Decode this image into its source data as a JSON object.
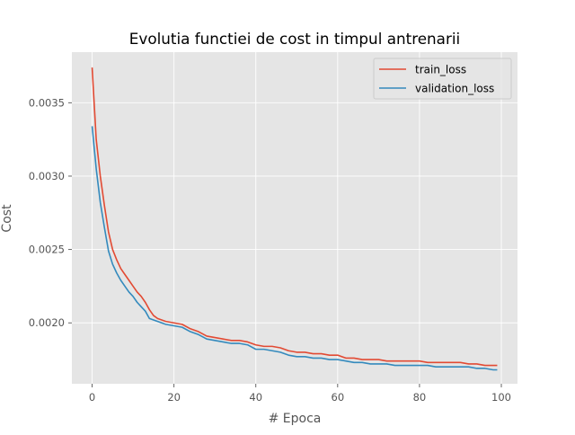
{
  "chart_data": {
    "type": "line",
    "title": "Evolutia functiei de cost in timpul antrenarii",
    "xlabel": "# Epoca",
    "ylabel": "Cost",
    "xlim": [
      -4.95,
      103.95
    ],
    "ylim": [
      0.001585,
      0.003845
    ],
    "x_ticks": [
      0,
      20,
      40,
      60,
      80,
      100
    ],
    "y_ticks": [
      0.002,
      0.0025,
      0.003,
      0.0035
    ],
    "x_tick_labels": [
      "0",
      "20",
      "40",
      "60",
      "80",
      "100"
    ],
    "y_tick_labels": [
      "0.0020",
      "0.0025",
      "0.0030",
      "0.0035"
    ],
    "grid": true,
    "legend_position": "top-right",
    "series": [
      {
        "name": "train_loss",
        "color": "#e24a33",
        "x": [
          0,
          1,
          2,
          3,
          4,
          5,
          6,
          7,
          8,
          9,
          10,
          11,
          12,
          13,
          14,
          15,
          16,
          18,
          20,
          22,
          24,
          26,
          28,
          30,
          32,
          34,
          36,
          38,
          40,
          42,
          44,
          46,
          48,
          50,
          52,
          54,
          56,
          58,
          60,
          62,
          64,
          66,
          68,
          70,
          72,
          74,
          76,
          78,
          80,
          82,
          84,
          86,
          88,
          90,
          92,
          94,
          96,
          98,
          99
        ],
        "values": [
          0.00374,
          0.00325,
          0.003,
          0.0028,
          0.00262,
          0.0025,
          0.00243,
          0.00237,
          0.00233,
          0.00229,
          0.00225,
          0.00221,
          0.00218,
          0.00214,
          0.00209,
          0.00205,
          0.00203,
          0.00201,
          0.002,
          0.00199,
          0.00196,
          0.00194,
          0.00191,
          0.0019,
          0.00189,
          0.00188,
          0.00188,
          0.00187,
          0.00185,
          0.00184,
          0.00184,
          0.00183,
          0.00181,
          0.0018,
          0.0018,
          0.00179,
          0.00179,
          0.00178,
          0.00178,
          0.00176,
          0.00176,
          0.00175,
          0.00175,
          0.00175,
          0.00174,
          0.00174,
          0.00174,
          0.00174,
          0.00174,
          0.00173,
          0.00173,
          0.00173,
          0.00173,
          0.00173,
          0.00172,
          0.00172,
          0.00171,
          0.00171,
          0.00171
        ]
      },
      {
        "name": "validation_loss",
        "color": "#348abd",
        "x": [
          0,
          1,
          2,
          3,
          4,
          5,
          6,
          7,
          8,
          9,
          10,
          11,
          12,
          13,
          14,
          15,
          16,
          18,
          20,
          22,
          24,
          26,
          28,
          30,
          32,
          34,
          36,
          38,
          40,
          42,
          44,
          46,
          48,
          50,
          52,
          54,
          56,
          58,
          60,
          62,
          64,
          66,
          68,
          70,
          72,
          74,
          76,
          78,
          80,
          82,
          84,
          86,
          88,
          90,
          92,
          94,
          96,
          98,
          99
        ],
        "values": [
          0.00334,
          0.00305,
          0.00282,
          0.00265,
          0.00249,
          0.0024,
          0.00234,
          0.00229,
          0.00225,
          0.00221,
          0.00218,
          0.00214,
          0.00211,
          0.00208,
          0.00203,
          0.00202,
          0.00201,
          0.00199,
          0.00198,
          0.00197,
          0.00194,
          0.00192,
          0.00189,
          0.00188,
          0.00187,
          0.00186,
          0.00186,
          0.00185,
          0.00182,
          0.00182,
          0.00181,
          0.0018,
          0.00178,
          0.00177,
          0.00177,
          0.00176,
          0.00176,
          0.00175,
          0.00175,
          0.00174,
          0.00173,
          0.00173,
          0.00172,
          0.00172,
          0.00172,
          0.00171,
          0.00171,
          0.00171,
          0.00171,
          0.00171,
          0.0017,
          0.0017,
          0.0017,
          0.0017,
          0.0017,
          0.00169,
          0.00169,
          0.00168,
          0.00168
        ]
      }
    ]
  }
}
